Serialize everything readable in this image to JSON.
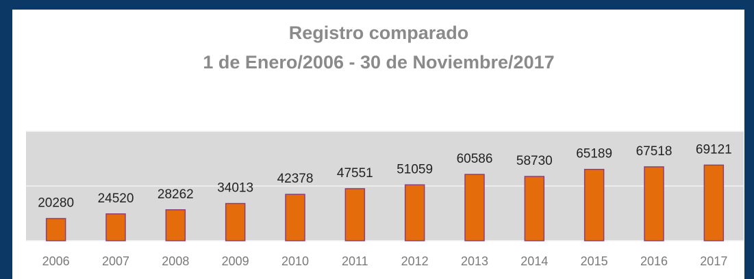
{
  "chart_data": {
    "type": "bar",
    "title": "Registro comparado",
    "subtitle": "1 de Enero/2006 - 30 de Noviembre/2017",
    "categories": [
      "2006",
      "2007",
      "2008",
      "2009",
      "2010",
      "2011",
      "2012",
      "2013",
      "2014",
      "2015",
      "2016",
      "2017"
    ],
    "values": [
      20280,
      24520,
      28262,
      34013,
      42378,
      47551,
      51059,
      60586,
      58730,
      65189,
      67518,
      69121
    ],
    "color": "#e46c0a",
    "ylim": [
      0,
      100000
    ],
    "yticks": [
      0,
      50000,
      100000
    ],
    "grid": true
  }
}
